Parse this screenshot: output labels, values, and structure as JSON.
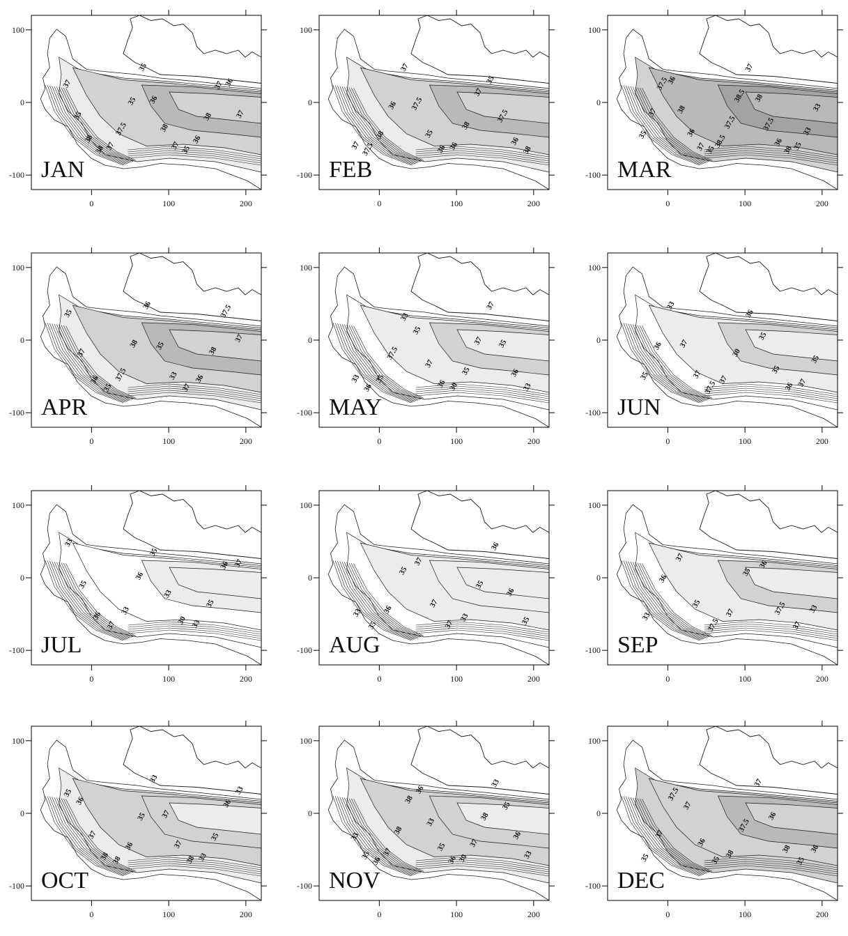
{
  "figure": {
    "x_ticks": [
      "0",
      "100",
      "200"
    ],
    "y_ticks": [
      "100",
      "0",
      "-100"
    ],
    "colors": {
      "land": "#ffffff",
      "shade_low": "#ffffff",
      "shade_1": "#ececec",
      "shade_2": "#d2d2d2",
      "shade_3": "#b9b9b9",
      "shade_4": "#a3a3a3",
      "contour": "#1a1a1a",
      "frame": "#000000"
    },
    "panels": [
      {
        "month": "JAN",
        "labels": [
          "37",
          "35",
          "38",
          "38",
          "37",
          "37.5",
          "35",
          "35",
          "36",
          "38",
          "37",
          "35",
          "36",
          "38",
          "37",
          "36",
          "37"
        ],
        "levels": [
          1,
          2,
          3,
          2,
          2
        ]
      },
      {
        "month": "FEB",
        "labels": [
          "37",
          "37.5",
          "38",
          "36",
          "37",
          "37.5",
          "35",
          "36",
          "36",
          "38",
          "37",
          "35",
          "37.5",
          "36",
          "38"
        ],
        "levels": [
          1,
          2,
          3,
          2,
          1
        ]
      },
      {
        "month": "MAR",
        "labels": [
          "35",
          "37",
          "37.5",
          "36",
          "38",
          "36",
          "37",
          "35",
          "38.5",
          "37.5",
          "38.5",
          "37",
          "38",
          "37.5",
          "36",
          "38",
          "35",
          "33",
          "33"
        ],
        "levels": [
          2,
          3,
          4,
          3,
          2
        ]
      },
      {
        "month": "APR",
        "labels": [
          "35",
          "37",
          "36",
          "35",
          "37.5",
          "38",
          "36",
          "35",
          "33",
          "37",
          "36",
          "38",
          "37.5",
          "37"
        ],
        "levels": [
          1,
          2,
          3,
          2,
          1
        ]
      },
      {
        "month": "MAY",
        "labels": [
          "33",
          "36",
          "35",
          "37.5",
          "33",
          "35",
          "37",
          "36",
          "30",
          "35",
          "37",
          "37",
          "35",
          "36",
          "33"
        ],
        "levels": [
          0,
          1,
          2,
          1,
          1
        ]
      },
      {
        "month": "JUN",
        "labels": [
          "35",
          "36",
          "33",
          "37",
          "37",
          "37.5",
          "37",
          "30",
          "36",
          "35",
          "35",
          "36",
          "37",
          "35"
        ],
        "levels": [
          0,
          1,
          2,
          1,
          0
        ]
      },
      {
        "month": "JUL",
        "labels": [
          "33",
          "35",
          "36",
          "37",
          "33",
          "36",
          "35",
          "33",
          "30",
          "33",
          "35",
          "36",
          "37"
        ],
        "levels": [
          0,
          0,
          1,
          1,
          0
        ]
      },
      {
        "month": "AUG",
        "labels": [
          "33",
          "35",
          "36",
          "35",
          "37",
          "37",
          "37",
          "33",
          "35",
          "36",
          "36",
          "35"
        ],
        "levels": [
          0,
          1,
          1,
          1,
          0
        ]
      },
      {
        "month": "SEP",
        "labels": [
          "33",
          "36",
          "37",
          "35",
          "37.5",
          "37",
          "35",
          "36",
          "37.5",
          "37",
          "33"
        ],
        "levels": [
          0,
          1,
          2,
          1,
          0
        ]
      },
      {
        "month": "OCT",
        "labels": [
          "35",
          "36",
          "37",
          "38",
          "38",
          "36",
          "35",
          "33",
          "37",
          "37",
          "38",
          "33",
          "35",
          "36",
          "33"
        ],
        "levels": [
          1,
          2,
          2,
          1,
          0
        ]
      },
      {
        "month": "NOV",
        "labels": [
          "33",
          "35",
          "36",
          "37",
          "38",
          "38",
          "36",
          "33",
          "35",
          "36",
          "30",
          "37",
          "38",
          "33",
          "35",
          "36",
          "33"
        ],
        "levels": [
          1,
          2,
          2,
          1,
          0
        ]
      },
      {
        "month": "DEC",
        "labels": [
          "35",
          "37",
          "37.5",
          "37",
          "36",
          "35",
          "38",
          "37.5",
          "37",
          "36",
          "38",
          "35",
          "36"
        ],
        "levels": [
          2,
          2,
          3,
          2,
          1
        ]
      }
    ]
  }
}
